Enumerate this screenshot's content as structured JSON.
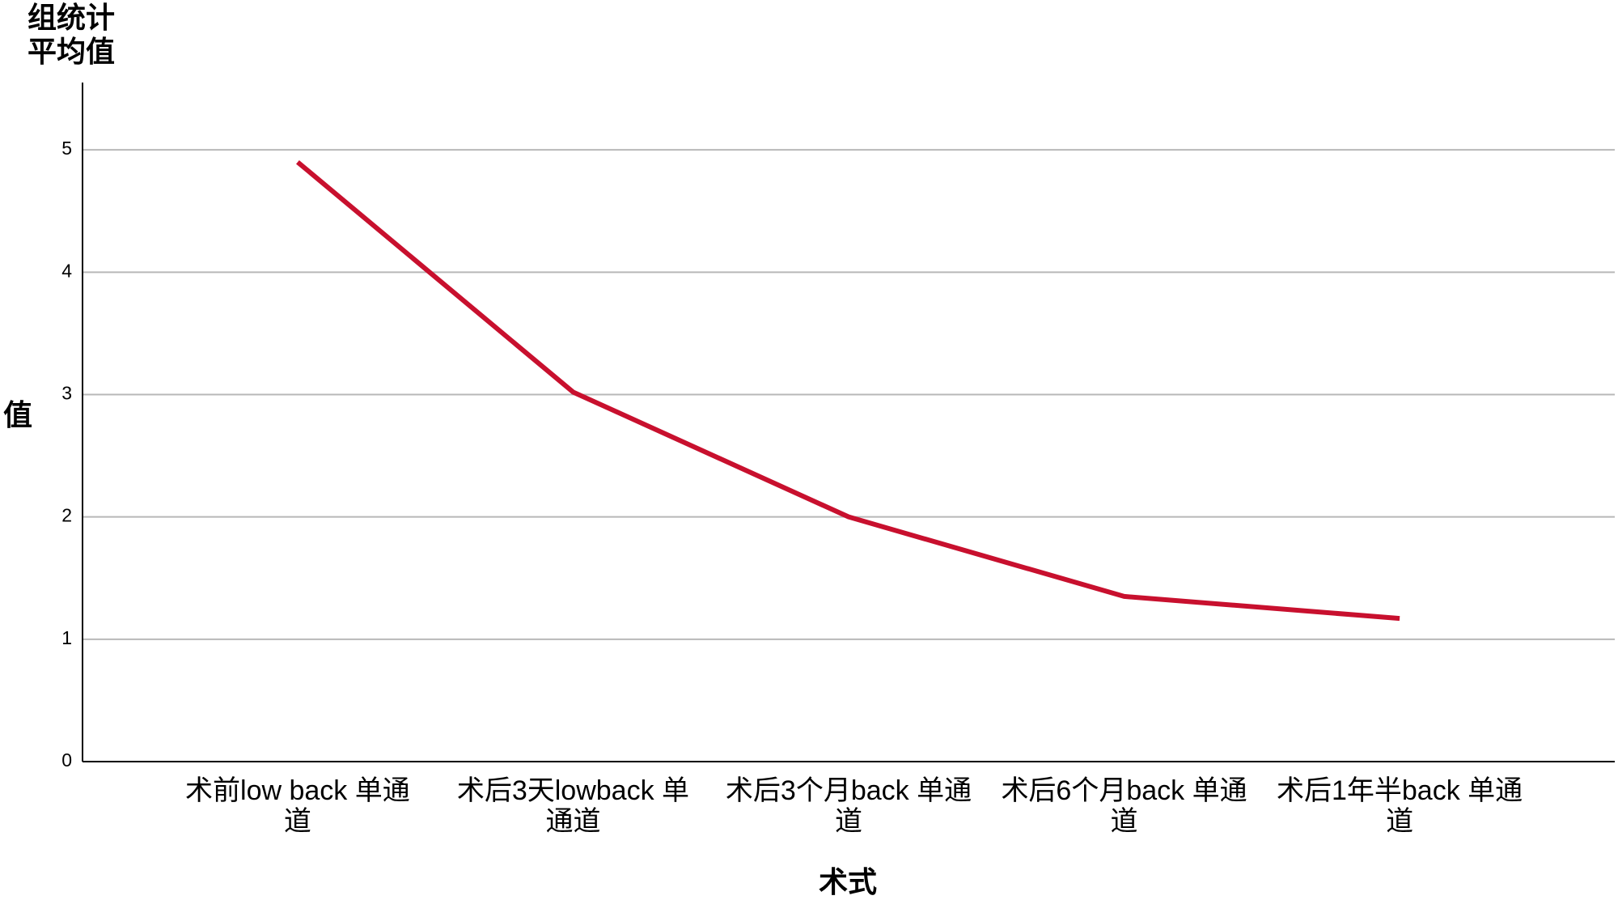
{
  "chart_data": {
    "type": "line",
    "title": "组统计平均值",
    "x_label": "术式",
    "y_label": "值",
    "categories": [
      "术前low back 单通道",
      "术后3天lowback 单通道",
      "术后3个月back 单通道",
      "术后6个月back 单通道",
      "术后1年半back 单通道"
    ],
    "series": [
      {
        "name": "平均值",
        "color": "#c8102e",
        "values": [
          4.9,
          3.02,
          2.0,
          1.35,
          1.17
        ]
      }
    ],
    "ylim": [
      0,
      5.55
    ],
    "yticks": [
      0,
      1,
      2,
      3,
      4,
      5
    ],
    "grid": true
  }
}
